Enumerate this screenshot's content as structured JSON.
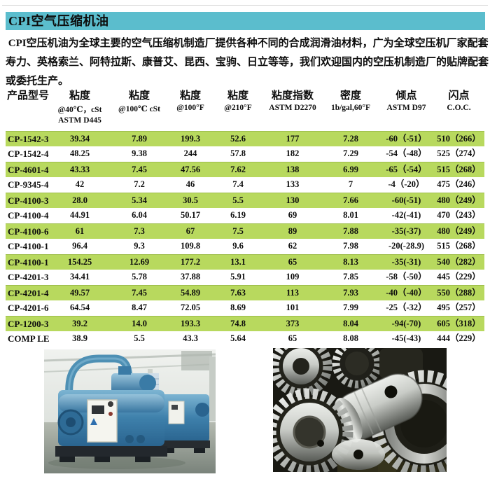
{
  "header": {
    "title": "CPI空气压缩机油"
  },
  "intro": {
    "lines": [
      " CPI空压机油为全球主要的空气压缩机制造厂提供各种不同的合成润滑油材料，广为全球空压机厂家配套：",
      "寿力、英格索兰、阿特拉斯、康普艾、昆西、宝驹、日立等等，我们欢迎国内的空压机制造厂的贴牌配套",
      "或委托生产。"
    ]
  },
  "table": {
    "headers": [
      [
        "产品型号"
      ],
      [
        "粘度",
        "@40℃，cSt",
        "ASTM D445"
      ],
      [
        "粘度",
        "@100℃ cSt"
      ],
      [
        "粘度",
        "@100°F"
      ],
      [
        "粘度",
        "@210°F"
      ],
      [
        "粘度指数",
        "ASTM D2270"
      ],
      [
        "密度",
        "1b/gal,60°F"
      ],
      [
        "倾点",
        "ASTM D97"
      ],
      [
        "闪点",
        "C.O.C."
      ]
    ],
    "rows": [
      [
        "CP-1542-32",
        "39.34",
        "7.89",
        "199.3",
        "52.6",
        "177",
        "7.28",
        "-60（-51）",
        "510（266）"
      ],
      [
        "CP-1542-46",
        "48.25",
        "9.38",
        "244",
        "57.8",
        "182",
        "7.29",
        "-54（-48）",
        "525（274）"
      ],
      [
        "CP-4601-46",
        "43.33",
        "7.45",
        "47.56",
        "7.62",
        "138",
        "6.99",
        "-65（-54）",
        "515（268）"
      ],
      [
        "CP-9345-46",
        "42",
        "7.2",
        "46",
        "7.4",
        "133",
        "7",
        "-4（-20）",
        "475（246）"
      ],
      [
        "CP-4100-32",
        "28.0",
        "5.34",
        "30.5",
        "5.5",
        "130",
        "7.66",
        "-60(-51)",
        "480（249）"
      ],
      [
        "CP-4100-46",
        "44.91",
        "6.04",
        "50.17",
        "6.19",
        "69",
        "8.01",
        "-42(-41)",
        "470（243）"
      ],
      [
        "CP-4100-68",
        "61",
        "7.3",
        "67",
        "7.5",
        "89",
        "7.88",
        "-35(-37)",
        "480（249）"
      ],
      [
        "CP-4100-100",
        "96.4",
        "9.3",
        "109.8",
        "9.6",
        "62",
        "7.98",
        "-20(-28.9)",
        "515（268）"
      ],
      [
        "CP-4100-150",
        "154.25",
        "12.69",
        "177.2",
        "13.1",
        "65",
        "8.13",
        "-35(-31)",
        "540（282）"
      ],
      [
        "CP-4201-32",
        "34.41",
        "5.78",
        "37.88",
        "5.91",
        "109",
        "7.85",
        "-58（-50）",
        "445（229）"
      ],
      [
        "CP-4201-46",
        "49.57",
        "7.45",
        "54.89",
        "7.63",
        "113",
        "7.93",
        "-40（-40）",
        "550（288）"
      ],
      [
        "CP-4201-68",
        "64.54",
        "8.47",
        "72.05",
        "8.69",
        "101",
        "7.99",
        "-25（-32）",
        "495（257）"
      ],
      [
        "CP-1200-32",
        "39.2",
        "14.0",
        "193.3",
        "74.8",
        "373",
        "8.04",
        "-94(-70)",
        "605（318）"
      ],
      [
        "COMP LEANII",
        "38.9",
        "5.5",
        "43.3",
        "5.64",
        "65",
        "8.08",
        "-45(-43)",
        "444（229）"
      ]
    ]
  },
  "images": [
    {
      "label": "blue-air-compressor-units-in-factory"
    },
    {
      "label": "steel-gears-closeup"
    }
  ],
  "colors": {
    "title_bar_bg": "#5bbdcd",
    "row_highlight": "#b8d95e",
    "row_highlight_border": "#9ebe4b"
  }
}
